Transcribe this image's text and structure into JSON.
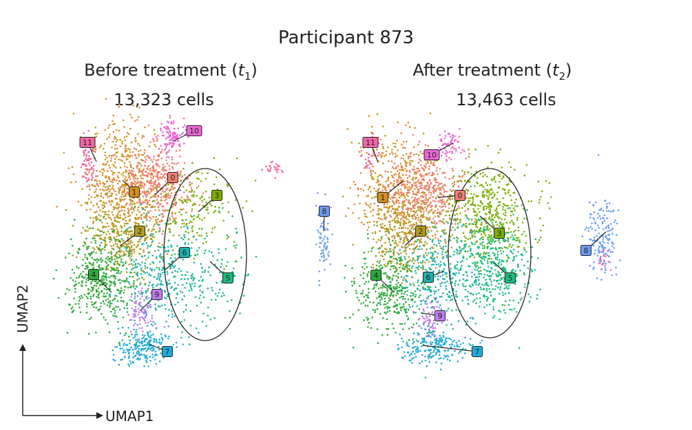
{
  "figure": {
    "title": "Participant 873",
    "panels": [
      {
        "title_prefix": "Before treatment (",
        "time_var": "t",
        "time_sub": "1",
        "title_suffix": ")",
        "cell_count": "13,323 cells"
      },
      {
        "title_prefix": "After treatment (",
        "time_var": "t",
        "time_sub": "2",
        "title_suffix": ")",
        "cell_count": "13,463 cells"
      }
    ]
  },
  "chart_data": [
    {
      "type": "scatter",
      "title": "Before treatment (t1)",
      "subtitle": "13,323 cells",
      "xlabel": "UMAP1",
      "ylabel": "UMAP2",
      "cell_count": 13323,
      "clusters": [
        {
          "id": "0",
          "color": "#F27D72"
        },
        {
          "id": "1",
          "color": "#D4901E"
        },
        {
          "id": "2",
          "color": "#B09C1E"
        },
        {
          "id": "3",
          "color": "#7CAE00"
        },
        {
          "id": "4",
          "color": "#2BAB3A"
        },
        {
          "id": "5",
          "color": "#19BD81"
        },
        {
          "id": "6",
          "color": "#1AB2AE"
        },
        {
          "id": "7",
          "color": "#20ABD8"
        },
        {
          "id": "8",
          "color": "#6A9CF2"
        },
        {
          "id": "9",
          "color": "#C07CF0"
        },
        {
          "id": "10",
          "color": "#EB66D6"
        },
        {
          "id": "11",
          "color": "#F266A6"
        }
      ],
      "highlighted_clusters": [
        "3",
        "5",
        "6"
      ]
    },
    {
      "type": "scatter",
      "title": "After treatment (t2)",
      "subtitle": "13,463 cells",
      "xlabel": "UMAP1",
      "ylabel": "UMAP2",
      "cell_count": 13463,
      "clusters": [
        {
          "id": "0",
          "color": "#F27D72"
        },
        {
          "id": "1",
          "color": "#D4901E"
        },
        {
          "id": "2",
          "color": "#B09C1E"
        },
        {
          "id": "3",
          "color": "#7CAE00"
        },
        {
          "id": "4",
          "color": "#2BAB3A"
        },
        {
          "id": "5",
          "color": "#19BD81"
        },
        {
          "id": "6",
          "color": "#1AB2AE"
        },
        {
          "id": "7",
          "color": "#20ABD8"
        },
        {
          "id": "8",
          "color": "#6A9CF2"
        },
        {
          "id": "9",
          "color": "#C07CF0"
        },
        {
          "id": "10",
          "color": "#EB66D6"
        },
        {
          "id": "11",
          "color": "#F266A6"
        }
      ],
      "highlighted_clusters": [
        "3",
        "5",
        "6"
      ]
    }
  ]
}
